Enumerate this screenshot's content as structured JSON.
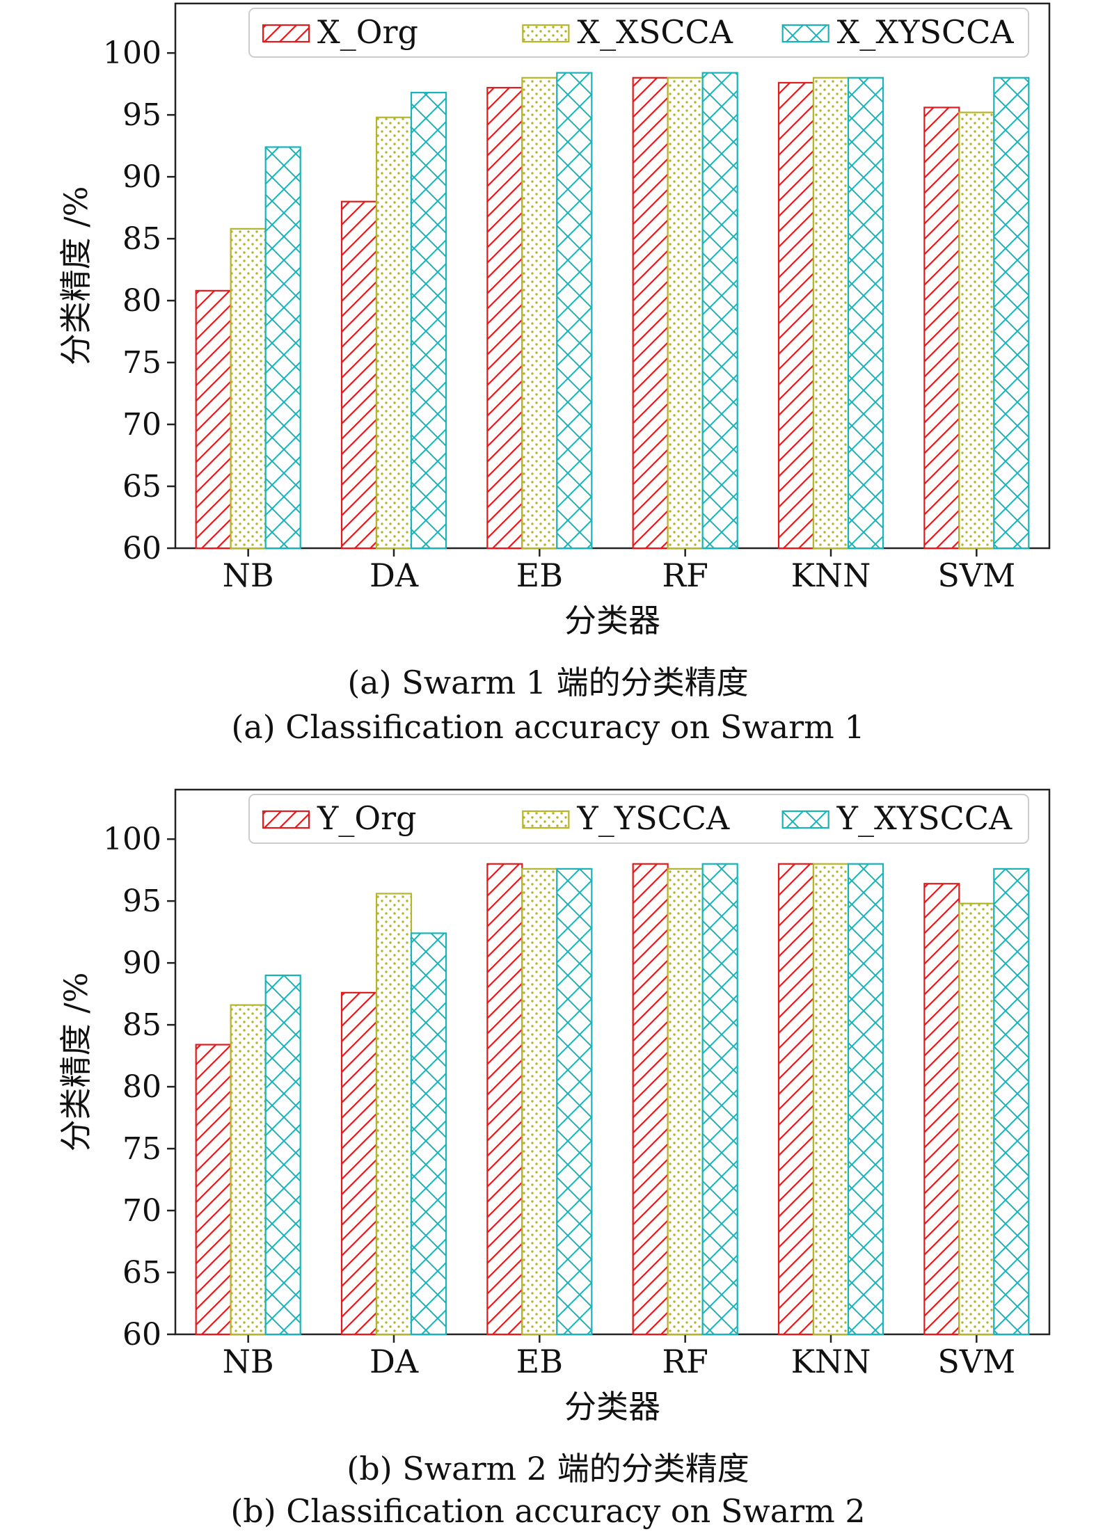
{
  "colors": {
    "org": "#e31a1c",
    "single": "#b5b52a",
    "joint": "#17b3b8"
  },
  "chart_data": [
    {
      "type": "bar",
      "categories": [
        "NB",
        "DA",
        "EB",
        "RF",
        "KNN",
        "SVM"
      ],
      "series": [
        {
          "name": "X_Org",
          "pattern": "diagonal",
          "color": "#e31a1c",
          "values": [
            80.8,
            88.0,
            97.2,
            98.0,
            97.6,
            95.6
          ]
        },
        {
          "name": "X_XSCCA",
          "pattern": "dots",
          "color": "#b5b52a",
          "values": [
            85.8,
            94.8,
            98.0,
            98.0,
            98.0,
            95.2
          ]
        },
        {
          "name": "X_XYSCCA",
          "pattern": "cross",
          "color": "#17b3b8",
          "values": [
            92.4,
            96.8,
            98.4,
            98.4,
            98.0,
            98.0
          ]
        }
      ],
      "ylabel": "分类精度 /%",
      "xlabel": "分类器",
      "ylim": [
        60,
        104
      ],
      "yticks": [
        60,
        65,
        70,
        75,
        80,
        85,
        90,
        95,
        100
      ],
      "grid": false,
      "legend_position": "top-right",
      "caption_cn": "(a) Swarm 1 端的分类精度",
      "caption_en": "(a) Classification accuracy on Swarm 1"
    },
    {
      "type": "bar",
      "categories": [
        "NB",
        "DA",
        "EB",
        "RF",
        "KNN",
        "SVM"
      ],
      "series": [
        {
          "name": "Y_Org",
          "pattern": "diagonal",
          "color": "#e31a1c",
          "values": [
            83.4,
            87.6,
            98.0,
            98.0,
            98.0,
            96.4
          ]
        },
        {
          "name": "Y_YSCCA",
          "pattern": "dots",
          "color": "#b5b52a",
          "values": [
            86.6,
            95.6,
            97.6,
            97.6,
            98.0,
            94.8
          ]
        },
        {
          "name": "Y_XYSCCA",
          "pattern": "cross",
          "color": "#17b3b8",
          "values": [
            89.0,
            92.4,
            97.6,
            98.0,
            98.0,
            97.6
          ]
        }
      ],
      "ylabel": "分类精度 /%",
      "xlabel": "分类器",
      "ylim": [
        60,
        104
      ],
      "yticks": [
        60,
        65,
        70,
        75,
        80,
        85,
        90,
        95,
        100
      ],
      "grid": false,
      "legend_position": "top-right",
      "caption_cn": "(b) Swarm 2 端的分类精度",
      "caption_en": "(b) Classification accuracy on Swarm 2"
    }
  ]
}
